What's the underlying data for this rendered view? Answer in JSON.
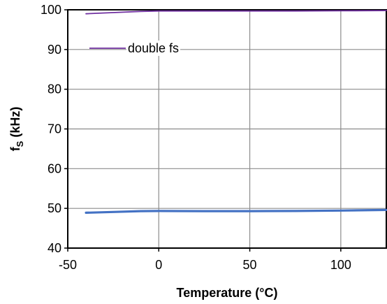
{
  "chart_data": {
    "type": "line",
    "title": "",
    "xlabel": "Temperature (°C)",
    "ylabel": {
      "main": "f",
      "sub": "S",
      "rest": " (kHz)"
    },
    "xlim": [
      -50,
      125
    ],
    "ylim": [
      40,
      100
    ],
    "xticks": [
      "-50",
      "0",
      "50",
      "100"
    ],
    "xtick_values": [
      -50,
      0,
      50,
      100
    ],
    "yticks": [
      "40",
      "50",
      "60",
      "70",
      "80",
      "90",
      "100"
    ],
    "ytick_values": [
      40,
      50,
      60,
      70,
      80,
      90,
      100
    ],
    "grid": true,
    "legend_position": "top-left",
    "series": [
      {
        "name": "double fs",
        "color": "#7030a0",
        "x": [
          -40,
          -25,
          -10,
          0,
          25,
          50,
          75,
          100,
          125
        ],
        "y": [
          99.0,
          99.3,
          99.6,
          99.7,
          99.7,
          99.7,
          99.7,
          99.75,
          99.8
        ]
      },
      {
        "color": "#4472c4",
        "x": [
          -40,
          -25,
          -10,
          0,
          25,
          50,
          75,
          100,
          125
        ],
        "y": [
          48.9,
          49.1,
          49.3,
          49.35,
          49.3,
          49.3,
          49.35,
          49.45,
          49.6
        ]
      }
    ]
  }
}
